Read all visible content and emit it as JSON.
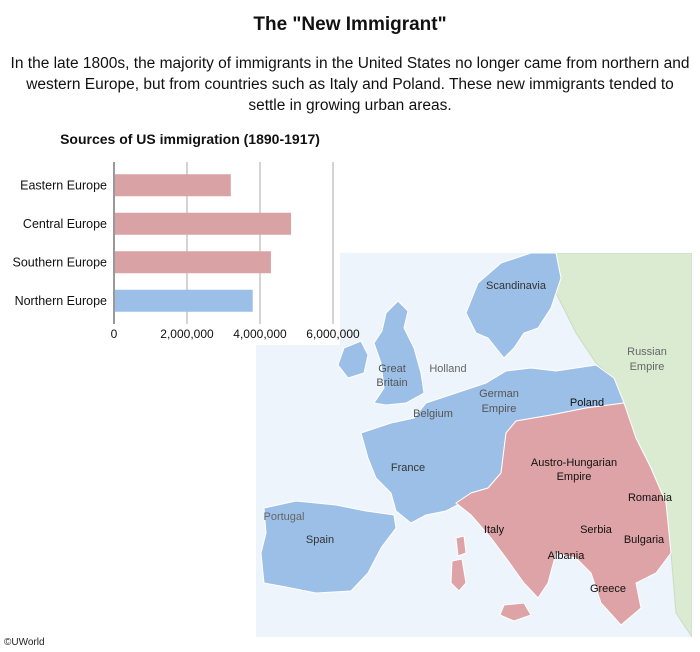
{
  "title": "The \"New Immigrant\"",
  "intro": "In the late 1800s, the majority of immigrants in the United States no longer came from northern and western Europe, but from countries such as Italy and Poland. These new immigrants tended to settle in growing urban areas.",
  "colors": {
    "old_source": "#9bbfe6",
    "new_source": "#dea3a6",
    "russia": "#dbebd2",
    "sea": "#eef4fb"
  },
  "chart_data": {
    "type": "bar",
    "orientation": "horizontal",
    "title": "Sources of US immigration (1890-1917)",
    "categories": [
      "Eastern Europe",
      "Central Europe",
      "Southern Europe",
      "Northern Europe"
    ],
    "values": [
      3200000,
      4850000,
      4300000,
      3800000
    ],
    "bar_colors": [
      "#d9a3a6",
      "#d9a3a6",
      "#d9a3a6",
      "#9bbfe6"
    ],
    "xlim": [
      0,
      6000000
    ],
    "xticks": [
      0,
      2000000,
      4000000,
      6000000
    ],
    "xtick_labels": [
      "0",
      "2,000,000",
      "4,000,000",
      "6,000,000"
    ],
    "grid": true
  },
  "map": {
    "labels": {
      "scandinavia": "Scandinavia",
      "russian_empire_1": "Russian",
      "russian_empire_2": "Empire",
      "great_britain_1": "Great",
      "great_britain_2": "Britain",
      "holland": "Holland",
      "german_empire_1": "German",
      "german_empire_2": "Empire",
      "belgium": "Belgium",
      "poland": "Poland",
      "france": "France",
      "austro_hungarian_1": "Austro-Hungarian",
      "austro_hungarian_2": "Empire",
      "portugal": "Portugal",
      "spain": "Spain",
      "italy": "Italy",
      "romania": "Romania",
      "serbia": "Serbia",
      "bulgaria": "Bulgaria",
      "albania": "Albania",
      "greece": "Greece"
    }
  },
  "copyright": "©UWorld"
}
